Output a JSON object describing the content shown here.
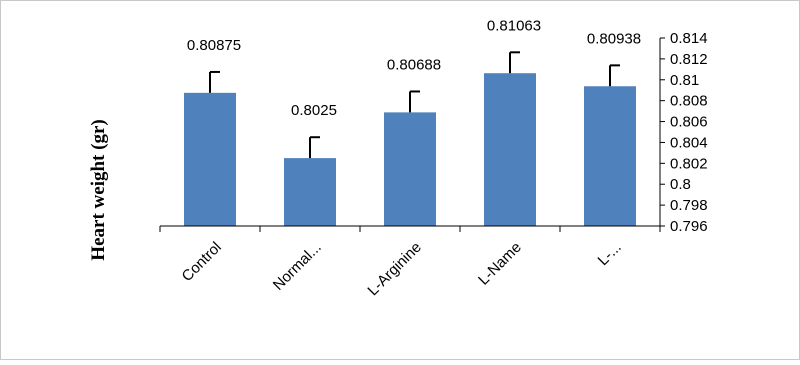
{
  "chart_data": {
    "type": "bar",
    "title": "",
    "xlabel": "",
    "ylabel": "Heart weight (gr)",
    "categories": [
      "Control",
      "Normal...",
      "L-Arginine",
      "L-Name",
      "L-..."
    ],
    "values": [
      0.80875,
      0.8025,
      0.80688,
      0.81063,
      0.80938
    ],
    "data_labels": [
      "0.80875",
      "0.8025",
      "0.80688",
      "0.81063",
      "0.80938"
    ],
    "error_bars": [
      0.002,
      0.002,
      0.002,
      0.002,
      0.002
    ],
    "ylim": [
      0.796,
      0.814
    ],
    "yticks": [
      0.796,
      0.798,
      0.8,
      0.802,
      0.804,
      0.806,
      0.808,
      0.81,
      0.812,
      0.814
    ],
    "ytick_labels": [
      "0.796",
      "0.798",
      "0.8",
      "0.802",
      "0.804",
      "0.806",
      "0.808",
      "0.81",
      "0.812",
      "0.814"
    ],
    "y_axis_position": "right",
    "grid": false,
    "legend": "none",
    "colors": {
      "bar": "#4f81bd",
      "bar_edge": "#3f6fa8",
      "axis": "#000000",
      "frame": "#c8c8c8",
      "error_bar": "#000000"
    }
  }
}
